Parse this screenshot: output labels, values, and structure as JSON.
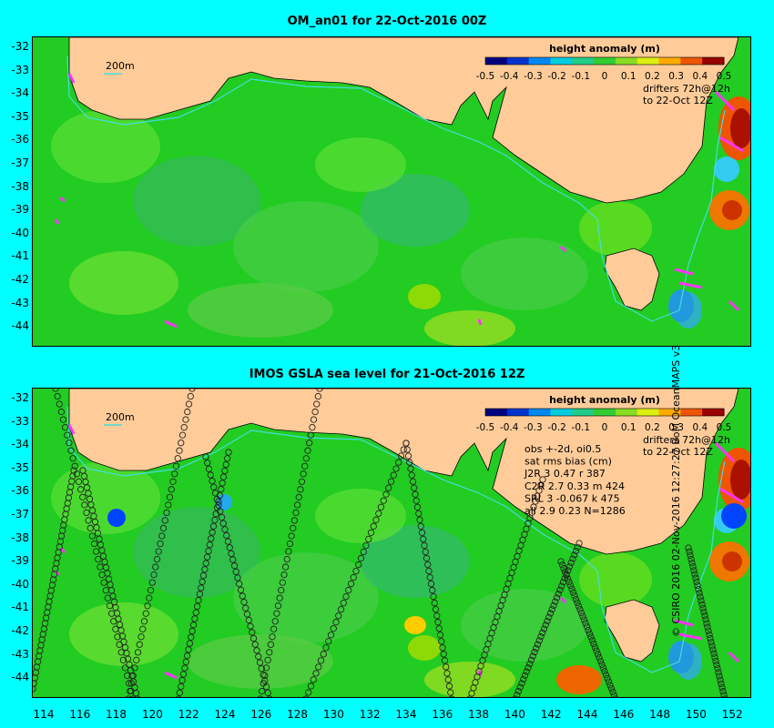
{
  "panels": [
    {
      "title": "OM_an01 for 22-Oct-2016 00Z",
      "legend": {
        "title": "height anomaly (m)",
        "ticks": [
          "-0.5",
          "-0.4",
          "-0.3",
          "-0.2",
          "-0.1",
          "0",
          "0.1",
          "0.2",
          "0.3",
          "0.4",
          "0.5"
        ]
      },
      "depth_label": "200m",
      "drifters_line1": "drifters 72h@12h",
      "drifters_line2": "to 22-Oct 12Z",
      "y_ticks": [
        "-32",
        "-33",
        "-34",
        "-35",
        "-36",
        "-37",
        "-38",
        "-39",
        "-40",
        "-41",
        "-42",
        "-43",
        "-44"
      ]
    },
    {
      "title": "IMOS GSLA sea level  for 21-Oct-2016 12Z",
      "legend": {
        "title": "height anomaly (m)",
        "ticks": [
          "-0.5",
          "-0.4",
          "-0.3",
          "-0.2",
          "-0.1",
          "0",
          "0.1",
          "0.2",
          "0.3",
          "0.4",
          "0.5"
        ]
      },
      "depth_label": "200m",
      "drifters_line1": "drifters 72h@12h",
      "drifters_line2": "to 22-Oct 12Z",
      "stats": [
        "obs +-2d, oi0.5",
        "sat rms bias (cm)",
        "J2R   3 0.47 r 387",
        "C2R   2.7 0.33 m 424",
        "SRL   3 -0.067 k 475",
        "all   2.9 0.23 N=1286"
      ],
      "y_ticks": [
        "-32",
        "-33",
        "-34",
        "-35",
        "-36",
        "-37",
        "-38",
        "-39",
        "-40",
        "-41",
        "-42",
        "-43",
        "-44"
      ]
    }
  ],
  "x_ticks": [
    "114",
    "116",
    "118",
    "120",
    "122",
    "124",
    "126",
    "128",
    "130",
    "132",
    "134",
    "136",
    "138",
    "140",
    "142",
    "144",
    "146",
    "148",
    "150",
    "152"
  ],
  "copyright": "© CSIRO 2016  02-Nov-2016 12:27:27 BoM OceanMAPS v3",
  "colors": {
    "background": "#00ffff",
    "land": "#ffcc99",
    "ocean_base": "#22cc22",
    "contour_200m": "#44dddd",
    "drifters": "#ff33ff",
    "warm_eddy": "#aa1100",
    "cold_eddy": "#0044ff"
  }
}
